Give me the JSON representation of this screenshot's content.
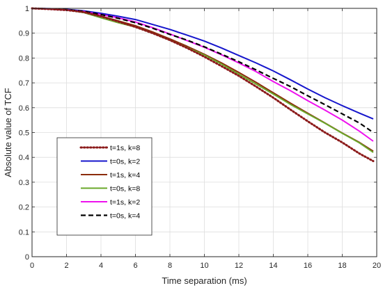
{
  "chart_data": {
    "type": "line",
    "title": "",
    "xlabel": "Time separation (ms)",
    "ylabel": "Absolute value of TCF",
    "xlim": [
      0,
      20
    ],
    "ylim": [
      0,
      1
    ],
    "x_ticks": [
      "0",
      "2",
      "4",
      "6",
      "8",
      "10",
      "12",
      "14",
      "16",
      "18",
      "20"
    ],
    "y_ticks": [
      "0",
      "0.1",
      "0.2",
      "0.3",
      "0.4",
      "0.5",
      "0.6",
      "0.7",
      "0.8",
      "0.9",
      "1"
    ],
    "grid": true,
    "legend_position": "lower-left",
    "x": [
      0,
      1,
      2,
      3,
      4,
      5,
      6,
      7,
      8,
      9,
      10,
      11,
      12,
      13,
      14,
      15,
      16,
      17,
      18,
      19,
      19.8
    ],
    "series": [
      {
        "name": "t=1s, k=8",
        "color": "#8b1a1a",
        "style": "dotted",
        "values": [
          1.0,
          0.997,
          0.993,
          0.985,
          0.968,
          0.947,
          0.925,
          0.9,
          0.872,
          0.84,
          0.805,
          0.767,
          0.728,
          0.685,
          0.64,
          0.592,
          0.545,
          0.5,
          0.46,
          0.415,
          0.385
        ]
      },
      {
        "name": "t=0s, k=2",
        "color": "#1515cc",
        "style": "solid",
        "values": [
          1.0,
          0.999,
          0.996,
          0.99,
          0.98,
          0.968,
          0.955,
          0.935,
          0.915,
          0.892,
          0.868,
          0.84,
          0.81,
          0.78,
          0.748,
          0.712,
          0.675,
          0.64,
          0.608,
          0.578,
          0.555
        ]
      },
      {
        "name": "t=1s, k=4",
        "color": "#8b2c0a",
        "style": "solid",
        "values": [
          1.0,
          0.998,
          0.994,
          0.985,
          0.968,
          0.95,
          0.93,
          0.905,
          0.877,
          0.847,
          0.815,
          0.78,
          0.742,
          0.702,
          0.66,
          0.618,
          0.578,
          0.538,
          0.498,
          0.46,
          0.425
        ]
      },
      {
        "name": "t=0s, k=8",
        "color": "#6aa82a",
        "style": "solid",
        "values": [
          1.0,
          0.998,
          0.994,
          0.983,
          0.962,
          0.942,
          0.925,
          0.9,
          0.872,
          0.842,
          0.812,
          0.775,
          0.735,
          0.695,
          0.655,
          0.613,
          0.575,
          0.537,
          0.497,
          0.458,
          0.42
        ]
      },
      {
        "name": "t=1s, k=2",
        "color": "#ee11ee",
        "style": "solid",
        "values": [
          1.0,
          0.997,
          0.993,
          0.987,
          0.975,
          0.962,
          0.945,
          0.922,
          0.897,
          0.87,
          0.843,
          0.813,
          0.78,
          0.745,
          0.705,
          0.668,
          0.628,
          0.59,
          0.55,
          0.505,
          0.465
        ]
      },
      {
        "name": "t=0s, k=4",
        "color": "#000000",
        "style": "dashed",
        "values": [
          1.0,
          0.998,
          0.995,
          0.988,
          0.975,
          0.96,
          0.942,
          0.92,
          0.895,
          0.872,
          0.845,
          0.815,
          0.785,
          0.752,
          0.718,
          0.685,
          0.648,
          0.612,
          0.575,
          0.538,
          0.5
        ]
      }
    ]
  }
}
